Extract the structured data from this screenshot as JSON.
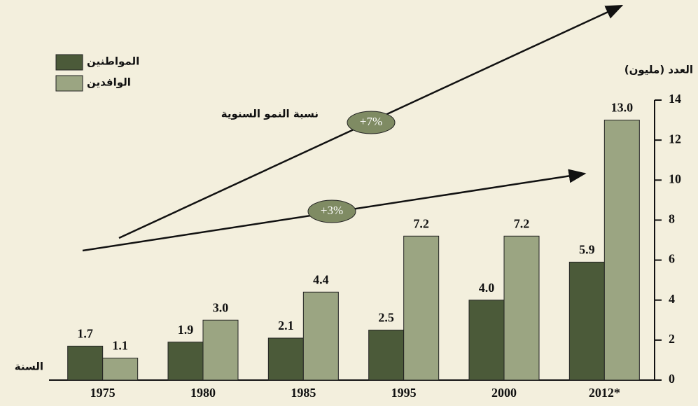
{
  "chart_data": {
    "type": "bar",
    "categories": [
      "1975",
      "1980",
      "1985",
      "1995",
      "2000",
      "2012*"
    ],
    "series": [
      {
        "name": "المواطنين",
        "color": "#4b5a39",
        "values": [
          1.7,
          1.9,
          2.1,
          2.5,
          4.0,
          5.9
        ],
        "value_labels": [
          "1.7",
          "1.9",
          "2.1",
          "2.5",
          "4.0",
          "5.9"
        ]
      },
      {
        "name": "الوافدين",
        "color": "#9ba582",
        "values": [
          1.1,
          3.0,
          4.4,
          7.2,
          7.2,
          13.0
        ],
        "value_labels": [
          "1.1",
          "3.0",
          "4.4",
          "7.2",
          "7.2",
          "13.0"
        ]
      }
    ],
    "ylim": [
      0,
      14
    ],
    "yticks": [
      0,
      2,
      4,
      6,
      8,
      10,
      12,
      14
    ],
    "y_axis_label": "العدد (مليون)",
    "x_axis_label": "السنة",
    "annotations": [
      "نسبة النمو السنوية",
      "+7%",
      "+3%"
    ],
    "legend": "top-left",
    "y_axis_side": "right"
  }
}
